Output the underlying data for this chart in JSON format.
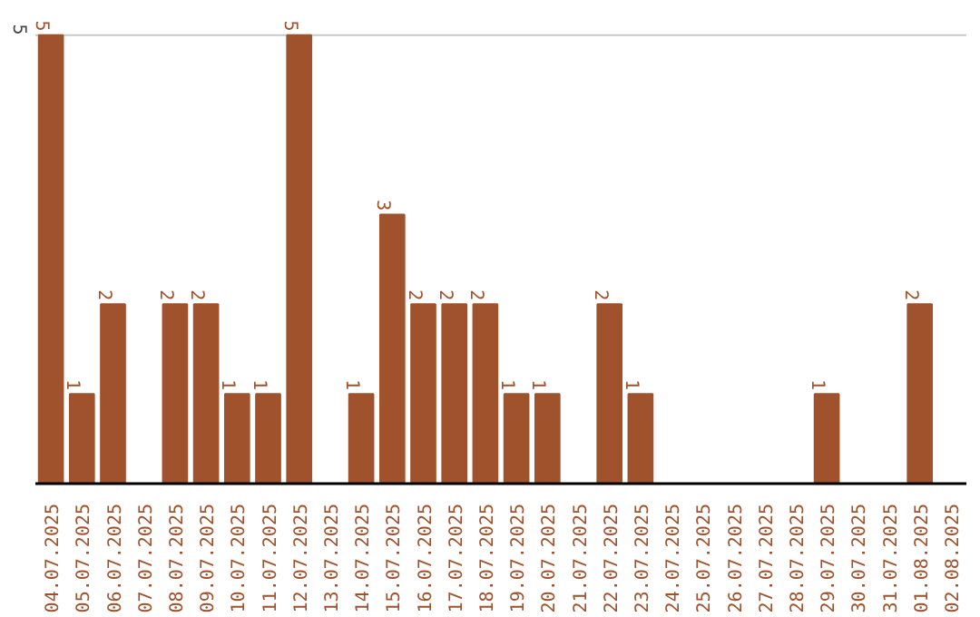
{
  "chart_data": {
    "type": "bar",
    "categories": [
      "04.07.2025",
      "05.07.2025",
      "06.07.2025",
      "07.07.2025",
      "08.07.2025",
      "09.07.2025",
      "10.07.2025",
      "11.07.2025",
      "12.07.2025",
      "13.07.2025",
      "14.07.2025",
      "15.07.2025",
      "16.07.2025",
      "17.07.2025",
      "18.07.2025",
      "19.07.2025",
      "20.07.2025",
      "21.07.2025",
      "22.07.2025",
      "23.07.2025",
      "24.07.2025",
      "25.07.2025",
      "26.07.2025",
      "27.07.2025",
      "28.07.2025",
      "29.07.2025",
      "30.07.2025",
      "31.07.2025",
      "01.08.2025",
      "02.08.2025"
    ],
    "values": [
      5,
      1,
      2,
      0,
      2,
      2,
      1,
      1,
      5,
      0,
      1,
      3,
      2,
      2,
      2,
      1,
      1,
      0,
      2,
      1,
      0,
      0,
      0,
      0,
      0,
      1,
      0,
      0,
      2,
      0
    ],
    "value_labels": [
      "5",
      "1",
      "2",
      null,
      "2",
      "2",
      "1",
      "1",
      "5",
      null,
      "1",
      "3",
      "2",
      "2",
      "2",
      "1",
      "1",
      null,
      "2",
      "1",
      null,
      null,
      null,
      null,
      null,
      "1",
      null,
      null,
      "2",
      null
    ],
    "color": "#a0522d",
    "ref_lines": [
      {
        "axis": "y",
        "value": 5,
        "label": "5",
        "color": "#c8c8c8"
      }
    ]
  }
}
